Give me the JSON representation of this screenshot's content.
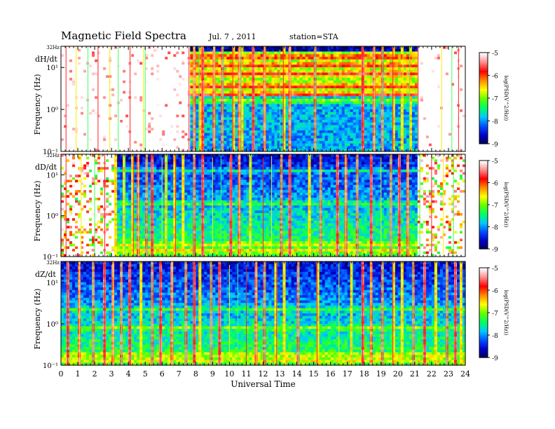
{
  "header": {
    "title": "Magnetic Field Spectra",
    "date": "Jul. 7 , 2011",
    "station": "station=STA"
  },
  "colors": {
    "colormap": [
      "#000050",
      "#0000c8",
      "#0050ff",
      "#00c8ff",
      "#00ff64",
      "#64ff00",
      "#ffff00",
      "#ff8c00",
      "#ff0000",
      "#ff8c8c",
      "#ffffff"
    ]
  },
  "chart_data": [
    {
      "type": "heatmap",
      "component": "dH/dt",
      "top_label": "32Hz",
      "ylabel": "Frequency (Hz)",
      "y_ticks": [
        "10¹",
        "10⁰",
        "10⁻¹"
      ],
      "y_scale": "log",
      "ylim": [
        0.1,
        32
      ],
      "xlim": [
        0,
        24
      ],
      "colorbar": {
        "label": "log(PSD(V^2/Hz))",
        "ticks": [
          "-5",
          "-6",
          "-7",
          "-8",
          "-9"
        ],
        "range": [
          -9,
          -5
        ]
      },
      "profile": {
        "bands_logf": [
          1.7,
          1.25,
          1.05,
          0.85,
          0.55,
          0.35,
          0.2
        ],
        "quiet_hours": [
          [
            0,
            7.7
          ],
          [
            21.1,
            24
          ]
        ],
        "burst_hours": [
          0.3,
          0.9,
          1.6,
          2.2,
          2.9,
          3.4,
          4.1,
          4.9,
          5.0,
          7.6,
          7.9,
          8.2,
          8.4,
          9.1,
          9.6,
          10.2,
          10.6,
          10.7,
          11.4,
          12.1,
          13.0,
          13.2,
          13.6,
          15.1,
          17.9,
          18.6,
          19.1,
          19.7,
          20.3,
          20.7,
          21.2,
          22.6,
          23.2,
          23.6
        ]
      }
    },
    {
      "type": "heatmap",
      "component": "dD/dt",
      "top_label": "32Hz",
      "ylabel": "Frequency (Hz)",
      "y_ticks": [
        "10¹",
        "10⁰",
        "10⁻¹"
      ],
      "y_scale": "log",
      "ylim": [
        0.1,
        32
      ],
      "xlim": [
        0,
        24
      ],
      "colorbar": {
        "label": "log(PSD(V^2/Hz))",
        "ticks": [
          "-5",
          "-6",
          "-7",
          "-8",
          "-9"
        ],
        "range": [
          -9,
          -5
        ]
      },
      "profile": {
        "bands_logf": [
          1.1,
          0.3,
          -0.7,
          -0.85
        ],
        "quiet_hours": [
          [
            0,
            3.1
          ],
          [
            21.1,
            24
          ]
        ],
        "burst_hours": [
          0.3,
          1.2,
          2.0,
          2.6,
          3.2,
          3.8,
          4.3,
          4.6,
          5.1,
          5.4,
          6.0,
          6.3,
          6.8,
          7.2,
          7.9,
          8.4,
          9.0,
          9.5,
          10.1,
          10.6,
          11.3,
          12.0,
          12.5,
          13.1,
          13.6,
          14.7,
          15.4,
          16.4,
          16.9,
          17.6,
          18.4,
          19.0,
          19.6,
          20.1,
          20.6,
          21.3,
          22.0,
          22.7,
          23.3
        ]
      }
    },
    {
      "type": "heatmap",
      "component": "dZ/dt",
      "top_label": "32Hz",
      "ylabel": "Frequency (Hz)",
      "y_ticks": [
        "10¹",
        "10⁰",
        "10⁻¹"
      ],
      "y_scale": "log",
      "ylim": [
        0.1,
        32
      ],
      "xlim": [
        0,
        24
      ],
      "colorbar": {
        "label": "log(PSD(V^2/Hz))",
        "ticks": [
          "-5",
          "-6",
          "-7",
          "-8",
          "-9"
        ],
        "range": [
          -9,
          -5
        ]
      },
      "profile": {
        "bands_logf": [
          0.35,
          -0.1,
          -0.75,
          -0.88
        ],
        "quiet_hours": [],
        "burst_hours": [
          0.4,
          1.1,
          1.9,
          2.6,
          3.1,
          3.6,
          4.1,
          4.7,
          5.4,
          5.9,
          6.6,
          7.4,
          7.9,
          8.3,
          8.9,
          9.4,
          10.0,
          10.5,
          11.0,
          11.6,
          12.1,
          12.8,
          13.3,
          14.1,
          15.2,
          16.5,
          17.3,
          17.9,
          18.4,
          19.1,
          19.7,
          20.2,
          20.9,
          21.6,
          22.3,
          22.9,
          23.4,
          23.7
        ]
      }
    }
  ],
  "x_axis": {
    "label": "Universal Time",
    "ticks": [
      "0",
      "1",
      "2",
      "3",
      "4",
      "5",
      "6",
      "7",
      "8",
      "9",
      "10",
      "11",
      "12",
      "13",
      "14",
      "15",
      "16",
      "17",
      "18",
      "19",
      "20",
      "21",
      "22",
      "23",
      "24"
    ]
  }
}
